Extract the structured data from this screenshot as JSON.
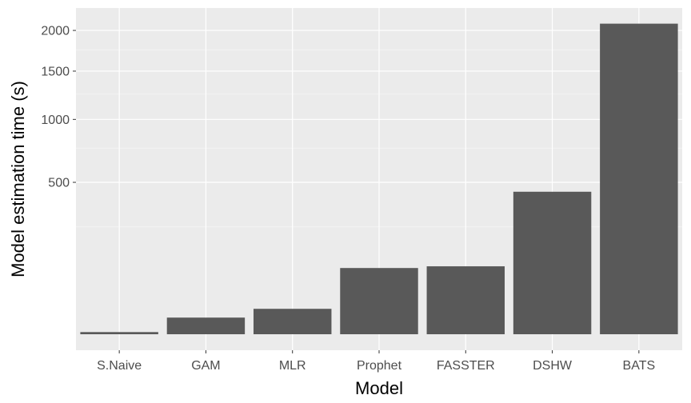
{
  "chart_data": {
    "type": "bar",
    "title": "",
    "xlabel": "Model",
    "ylabel": "Model estimation time (s)",
    "y_scale": "sqrt",
    "ylim": [
      0,
      2250
    ],
    "y_ticks": [
      500,
      1000,
      1500,
      2000
    ],
    "grid": true,
    "categories": [
      "S.Naive",
      "GAM",
      "MLR",
      "Prophet",
      "FASSTER",
      "DSHW",
      "BATS"
    ],
    "values": [
      0.1,
      6,
      14,
      95,
      100,
      440,
      2090
    ],
    "colors": {
      "bar": "#595959",
      "panel": "#ebebeb",
      "grid_major": "#ffffff",
      "grid_minor": "#f4f4f4",
      "tick_text": "#4d4d4d",
      "axis_title": "#000000"
    }
  }
}
